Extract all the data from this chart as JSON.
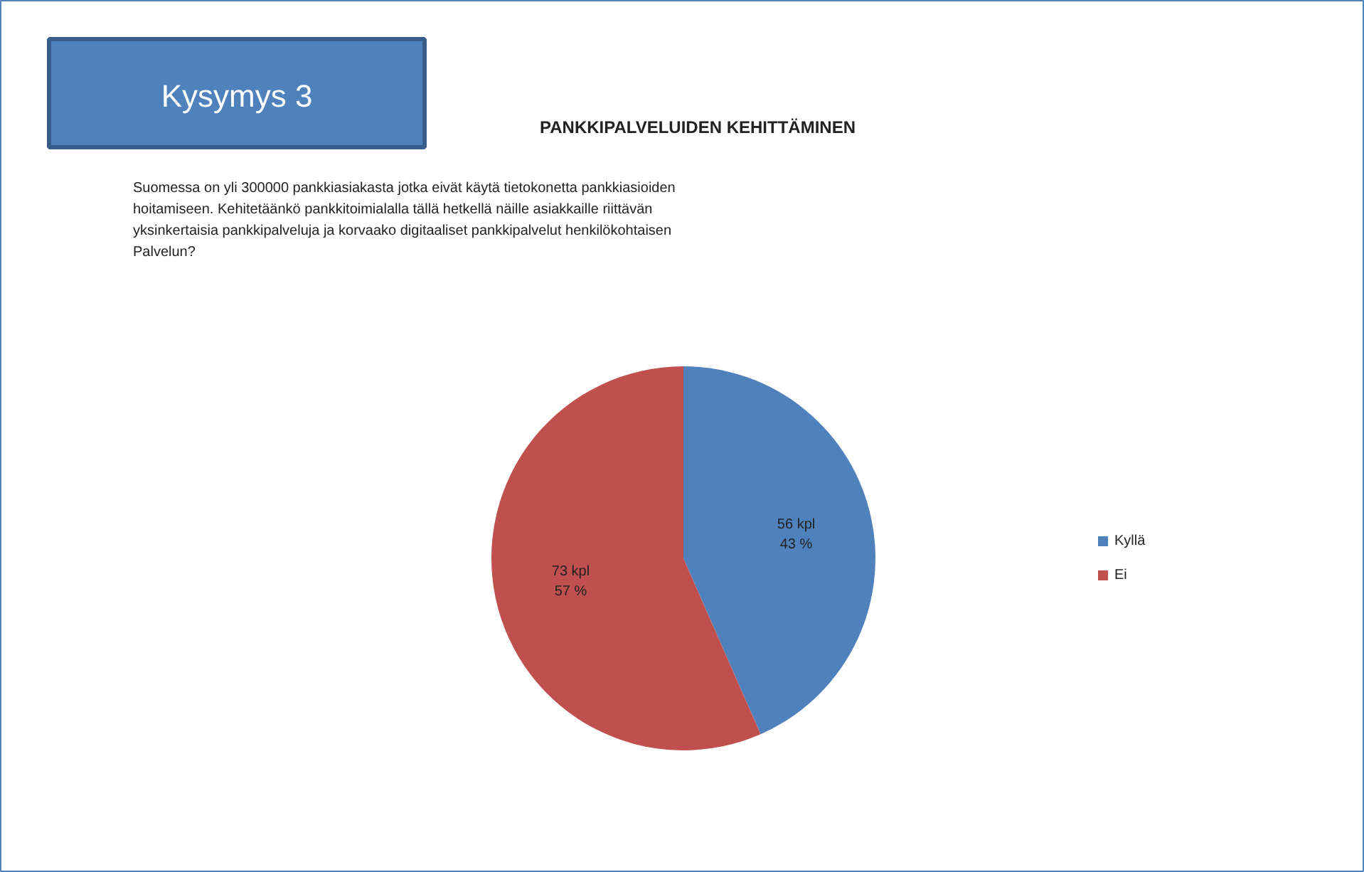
{
  "chart_data": {
    "type": "pie",
    "title": "PANKKIPALVELUIDEN KEHITTÄMINEN",
    "subtitle": "Suomessa on yli 300000 pankkiasiakasta jotka eivät käytä tietokonetta  pankkiasioiden\nhoitamiseen. Kehitetäänkö pankkitoimialalla tällä hetkellä näille asiakkaille riittävän\nyksinkertaisia pankkipalveluja ja korvaako  digitaaliset pankkipalvelut henkilökohtaisen\nPalvelun?",
    "annotations": [
      "Kysymys 3"
    ],
    "categories": [
      "Kyllä",
      "Ei"
    ],
    "values": [
      56,
      73
    ],
    "colors": [
      "#4f81bd",
      "#c0504d"
    ],
    "value_labels": [
      "56 kpl\n43 %",
      "73 kpl\n57 %"
    ],
    "legend": "right"
  }
}
